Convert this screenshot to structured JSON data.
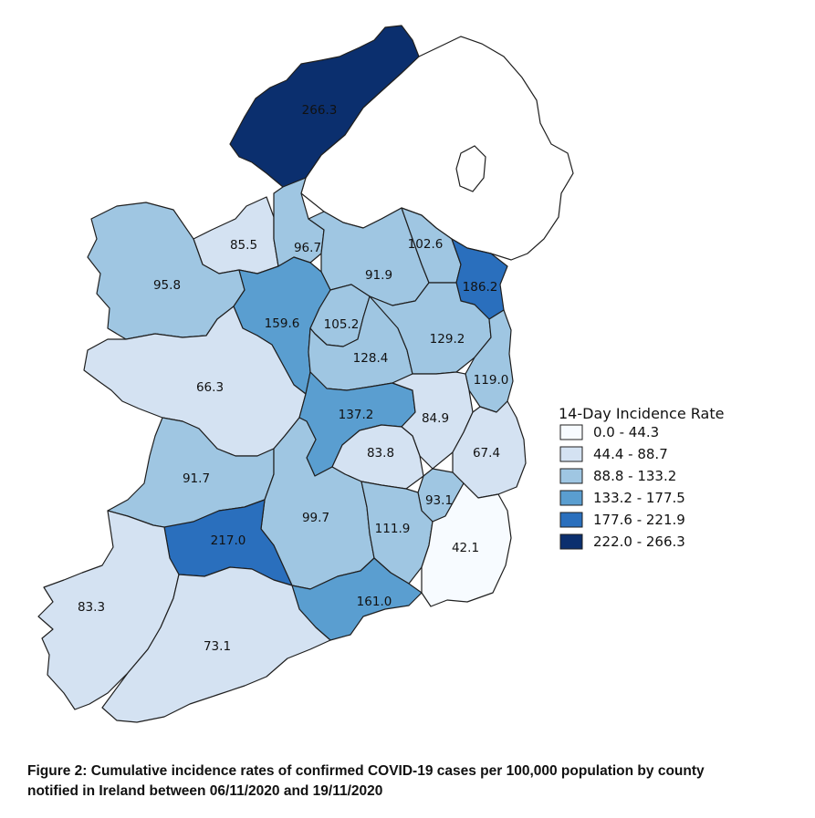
{
  "legend": {
    "title": "14-Day Incidence Rate",
    "classes": [
      {
        "label": "0.0 - 44.3",
        "color": "#f7fbff"
      },
      {
        "label": "44.4 - 88.7",
        "color": "#d4e2f2"
      },
      {
        "label": "88.8 - 133.2",
        "color": "#9fc6e2"
      },
      {
        "label": "133.2 - 177.5",
        "color": "#5a9ed0"
      },
      {
        "label": "177.6 - 221.9",
        "color": "#2a6fbd"
      },
      {
        "label": "222.0 - 266.3",
        "color": "#0b2f6e"
      }
    ]
  },
  "counties": [
    {
      "id": "donegal",
      "label": "266.3",
      "value": 266.3
    },
    {
      "id": "sligo",
      "label": "85.5",
      "value": 85.5
    },
    {
      "id": "leitrim",
      "label": "96.7",
      "value": 96.7
    },
    {
      "id": "monaghan",
      "label": "102.6",
      "value": 102.6
    },
    {
      "id": "mayo",
      "label": "95.8",
      "value": 95.8
    },
    {
      "id": "cavan",
      "label": "91.9",
      "value": 91.9
    },
    {
      "id": "louth",
      "label": "186.2",
      "value": 186.2
    },
    {
      "id": "roscommon",
      "label": "159.6",
      "value": 159.6
    },
    {
      "id": "longford",
      "label": "105.2",
      "value": 105.2
    },
    {
      "id": "meath",
      "label": "129.2",
      "value": 129.2
    },
    {
      "id": "westmeath",
      "label": "128.4",
      "value": 128.4
    },
    {
      "id": "galway",
      "label": "66.3",
      "value": 66.3
    },
    {
      "id": "dublin",
      "label": "119.0",
      "value": 119.0
    },
    {
      "id": "offaly",
      "label": "137.2",
      "value": 137.2
    },
    {
      "id": "kildare",
      "label": "84.9",
      "value": 84.9
    },
    {
      "id": "laois",
      "label": "83.8",
      "value": 83.8
    },
    {
      "id": "wicklow",
      "label": "67.4",
      "value": 67.4
    },
    {
      "id": "clare",
      "label": "91.7",
      "value": 91.7
    },
    {
      "id": "carlow",
      "label": "93.1",
      "value": 93.1
    },
    {
      "id": "tipperary",
      "label": "99.7",
      "value": 99.7
    },
    {
      "id": "kilkenny",
      "label": "111.9",
      "value": 111.9
    },
    {
      "id": "limerick",
      "label": "217.0",
      "value": 217.0
    },
    {
      "id": "wexford",
      "label": "42.1",
      "value": 42.1
    },
    {
      "id": "kerry",
      "label": "83.3",
      "value": 83.3
    },
    {
      "id": "waterford",
      "label": "161.0",
      "value": 161.0
    },
    {
      "id": "cork",
      "label": "73.1",
      "value": 73.1
    }
  ],
  "caption": {
    "line1": "Figure 2: Cumulative incidence rates of confirmed COVID-19 cases per 100,000 population by county",
    "line2": "notified in Ireland between 06/11/2020 and 19/11/2020"
  }
}
